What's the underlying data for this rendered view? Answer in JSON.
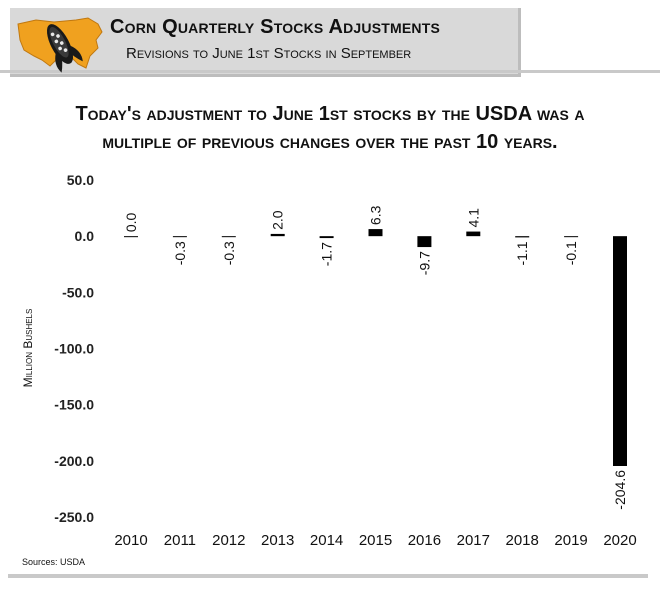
{
  "header": {
    "title": "Corn Quarterly Stocks Adjustments",
    "subtitle": "Revisions to June 1st Stocks in September"
  },
  "headline": {
    "line1": "Today's adjustment to June 1st stocks by the USDA was a",
    "line2": "multiple of previous changes over the past 10 years."
  },
  "source": "Sources: USDA",
  "colors": {
    "bar": "#000000",
    "banner": "#d9d9d9",
    "logo_map": "#f0a11f"
  },
  "icons": {
    "logo": "us-map-corn-icon"
  },
  "chart_data": {
    "type": "bar",
    "title": "",
    "xlabel": "",
    "ylabel": "Million Bushels",
    "categories": [
      "2010",
      "2011",
      "2012",
      "2013",
      "2014",
      "2015",
      "2016",
      "2017",
      "2018",
      "2019",
      "2020"
    ],
    "values": [
      0.0,
      -0.3,
      -0.3,
      2.0,
      -1.7,
      6.3,
      -9.7,
      4.1,
      -1.1,
      -0.1,
      -204.6
    ],
    "data_labels": [
      "0.0",
      "-0.3",
      "-0.3",
      "2.0",
      "-1.7",
      "6.3",
      "-9.7",
      "4.1",
      "-1.1",
      "-0.1",
      "-204.6"
    ],
    "yticks": [
      "50.0",
      "0.0",
      "-50.0",
      "-100.0",
      "-150.0",
      "-200.0",
      "-250.0"
    ],
    "ylim": [
      -250,
      50
    ],
    "grid": false,
    "legend": "none"
  }
}
